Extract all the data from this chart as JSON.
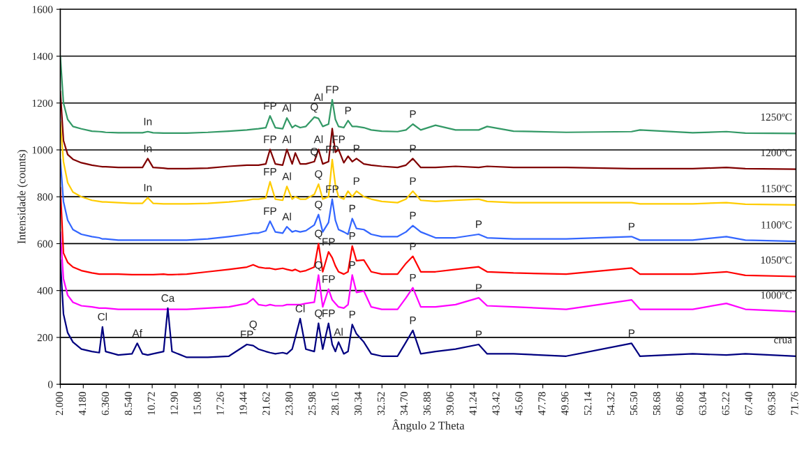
{
  "chart_data": {
    "type": "line",
    "xlabel": "Ângulo 2 Theta",
    "ylabel": "Intensidade (counts)",
    "x": [
      2,
      2.3,
      2.7,
      3.2,
      4,
      5,
      5.7,
      6.0,
      6.3,
      7.5,
      8.8,
      9.3,
      9.8,
      10.3,
      10.8,
      11.8,
      12.2,
      12.6,
      14,
      16,
      18,
      19.7,
      20.3,
      20.8,
      21.5,
      21.9,
      22.4,
      23.1,
      23.5,
      24.0,
      24.3,
      24.76,
      25.3,
      26.1,
      26.5,
      26.9,
      27.45,
      27.8,
      28.1,
      28.4,
      28.9,
      29.3,
      29.7,
      30.1,
      30.8,
      31.5,
      32.5,
      34.0,
      34.8,
      35.45,
      36.2,
      37.6,
      39.5,
      41.7,
      42.5,
      45,
      50,
      56.2,
      57,
      62,
      65.2,
      67,
      71.8
    ],
    "series": [
      {
        "name": "1250ºC",
        "color": "#339966",
        "values": [
          1400,
          1200,
          1130,
          1100,
          1090,
          1080,
          1078,
          1077,
          1075,
          1073,
          1073,
          1073,
          1073,
          1078,
          1073,
          1072,
          1072,
          1072,
          1072,
          1075,
          1080,
          1085,
          1088,
          1090,
          1095,
          1145,
          1095,
          1090,
          1136,
          1095,
          1105,
          1095,
          1100,
          1140,
          1134,
          1100,
          1110,
          1214,
          1130,
          1100,
          1095,
          1125,
          1100,
          1100,
          1095,
          1085,
          1080,
          1078,
          1085,
          1110,
          1085,
          1105,
          1085,
          1085,
          1100,
          1080,
          1075,
          1078,
          1085,
          1073,
          1078,
          1072,
          1070
        ]
      },
      {
        "name": "1200ºC",
        "color": "#800000",
        "values": [
          1250,
          1040,
          980,
          960,
          945,
          935,
          930,
          928,
          928,
          925,
          925,
          925,
          925,
          963,
          925,
          922,
          920,
          920,
          920,
          922,
          930,
          935,
          935,
          935,
          940,
          1002,
          940,
          935,
          1002,
          940,
          987,
          940,
          940,
          950,
          1002,
          940,
          950,
          1091,
          990,
          1002,
          945,
          973,
          950,
          963,
          940,
          935,
          930,
          925,
          935,
          963,
          925,
          925,
          930,
          925,
          930,
          925,
          925,
          920,
          920,
          920,
          925,
          920,
          918
        ]
      },
      {
        "name": "1150ºC",
        "color": "#ffcc00",
        "values": [
          1120,
          950,
          860,
          820,
          800,
          785,
          780,
          778,
          778,
          775,
          772,
          772,
          772,
          796,
          772,
          770,
          770,
          770,
          770,
          772,
          778,
          785,
          790,
          790,
          795,
          864,
          790,
          785,
          844,
          790,
          800,
          790,
          790,
          810,
          854,
          790,
          800,
          959,
          850,
          800,
          790,
          824,
          800,
          824,
          800,
          790,
          780,
          775,
          790,
          824,
          785,
          780,
          785,
          790,
          780,
          775,
          775,
          775,
          770,
          770,
          775,
          768,
          765
        ]
      },
      {
        "name": "1100ºC",
        "color": "#3366ff",
        "values": [
          960,
          780,
          700,
          660,
          640,
          630,
          625,
          620,
          620,
          615,
          615,
          615,
          615,
          615,
          615,
          615,
          615,
          615,
          615,
          620,
          630,
          640,
          645,
          645,
          655,
          696,
          650,
          645,
          672,
          650,
          655,
          650,
          655,
          680,
          724,
          650,
          690,
          790,
          700,
          660,
          650,
          640,
          707,
          665,
          660,
          640,
          630,
          630,
          650,
          677,
          650,
          625,
          625,
          640,
          625,
          620,
          620,
          630,
          615,
          615,
          630,
          615,
          610
        ]
      },
      {
        "name": "1050ºC",
        "color": "#ff0000",
        "values": [
          840,
          560,
          520,
          500,
          485,
          475,
          470,
          470,
          470,
          470,
          468,
          468,
          468,
          468,
          468,
          470,
          468,
          468,
          470,
          480,
          490,
          500,
          510,
          500,
          495,
          495,
          490,
          495,
          490,
          485,
          490,
          480,
          485,
          500,
          600,
          480,
          565,
          540,
          505,
          480,
          470,
          480,
          590,
          527,
          530,
          480,
          470,
          470,
          516,
          546,
          480,
          480,
          490,
          501,
          480,
          475,
          470,
          496,
          470,
          470,
          480,
          465,
          460
        ]
      },
      {
        "name": "1000ºC",
        "color": "#ff00ff",
        "values": [
          650,
          450,
          380,
          350,
          335,
          330,
          325,
          325,
          325,
          320,
          320,
          320,
          320,
          320,
          320,
          320,
          320,
          320,
          320,
          325,
          330,
          345,
          365,
          340,
          335,
          340,
          335,
          335,
          340,
          340,
          340,
          340,
          345,
          350,
          466,
          330,
          406,
          360,
          345,
          330,
          325,
          340,
          466,
          392,
          398,
          330,
          320,
          320,
          369,
          412,
          330,
          330,
          340,
          369,
          335,
          330,
          320,
          360,
          320,
          320,
          345,
          320,
          310
        ]
      },
      {
        "name": "crua",
        "color": "#000080",
        "values": [
          530,
          300,
          220,
          180,
          150,
          140,
          135,
          245,
          140,
          125,
          130,
          175,
          130,
          125,
          130,
          140,
          325,
          140,
          115,
          115,
          120,
          170,
          165,
          150,
          140,
          135,
          130,
          135,
          130,
          150,
          200,
          280,
          150,
          140,
          260,
          150,
          260,
          170,
          140,
          180,
          130,
          140,
          255,
          215,
          180,
          130,
          120,
          120,
          180,
          230,
          130,
          140,
          150,
          170,
          130,
          130,
          120,
          175,
          120,
          130,
          125,
          130,
          120
        ]
      }
    ],
    "xlim": [
      2,
      71.8
    ],
    "xticks": [
      {
        "value": 2,
        "label": "2.000"
      },
      {
        "value": 4.18,
        "label": "4.180"
      },
      {
        "value": 6.36,
        "label": "6.360"
      },
      {
        "value": 8.54,
        "label": "8.540"
      },
      10.72,
      {
        "value": 12.9,
        "label": "12.90"
      },
      15.08,
      17.26,
      19.44,
      21.62,
      {
        "value": 23.8,
        "label": "23.80"
      },
      25.98,
      28.16,
      30.34,
      32.52,
      {
        "value": 34.7,
        "label": "34.70"
      },
      36.88,
      39.06,
      41.24,
      43.42,
      {
        "value": 45.6,
        "label": "45.60"
      },
      47.78,
      49.96,
      52.14,
      54.32,
      {
        "value": 56.5,
        "label": "56.50"
      },
      58.68,
      60.86,
      63.04,
      65.22,
      {
        "value": 67.4,
        "label": "67.40"
      },
      69.58,
      71.76
    ],
    "ylim": [
      0,
      1600
    ],
    "yticks": [
      0,
      200,
      400,
      600,
      800,
      1000,
      1200,
      1400,
      1600
    ],
    "grid": "y",
    "legend": false,
    "marker": "none",
    "line_style": "solid",
    "annotations": [
      {
        "text": "In",
        "x": 10.3,
        "y": 1078
      },
      {
        "text": "FP",
        "x": 21.9,
        "y": 1145
      },
      {
        "text": "Al",
        "x": 23.5,
        "y": 1136
      },
      {
        "text": "Q",
        "x": 26.1,
        "y": 1140
      },
      {
        "text": "FP",
        "x": 27.8,
        "y": 1214
      },
      {
        "text": "Al",
        "x": 26.5,
        "y": 1134
      },
      {
        "text": "P",
        "x": 29.3,
        "y": 1125
      },
      {
        "text": "P",
        "x": 35.45,
        "y": 1110
      },
      {
        "text": "In",
        "x": 10.3,
        "y": 963
      },
      {
        "text": "FP",
        "x": 21.9,
        "y": 1002
      },
      {
        "text": "Al",
        "x": 23.5,
        "y": 1002
      },
      {
        "text": "Q",
        "x": 26.1,
        "y": 950
      },
      {
        "text": "Al",
        "x": 26.5,
        "y": 1002
      },
      {
        "text": "FP",
        "x": 28.4,
        "y": 1002
      },
      {
        "text": "P",
        "x": 30.1,
        "y": 963
      },
      {
        "text": "P",
        "x": 35.45,
        "y": 963
      },
      {
        "text": "In",
        "x": 10.3,
        "y": 796
      },
      {
        "text": "FP",
        "x": 21.9,
        "y": 864
      },
      {
        "text": "Al",
        "x": 23.5,
        "y": 844
      },
      {
        "text": "Q",
        "x": 26.5,
        "y": 854
      },
      {
        "text": "FP",
        "x": 27.8,
        "y": 959
      },
      {
        "text": "P",
        "x": 30.1,
        "y": 824
      },
      {
        "text": "P",
        "x": 35.45,
        "y": 824
      },
      {
        "text": "FP",
        "x": 21.9,
        "y": 696
      },
      {
        "text": "Al",
        "x": 23.5,
        "y": 672
      },
      {
        "text": "Q",
        "x": 26.5,
        "y": 724
      },
      {
        "text": "FP",
        "x": 27.8,
        "y": 790
      },
      {
        "text": "P",
        "x": 29.7,
        "y": 707
      },
      {
        "text": "P",
        "x": 35.45,
        "y": 677
      },
      {
        "text": "P",
        "x": 41.7,
        "y": 640
      },
      {
        "text": "P",
        "x": 56.2,
        "y": 630
      },
      {
        "text": "Q",
        "x": 26.5,
        "y": 600
      },
      {
        "text": "FP",
        "x": 27.45,
        "y": 565
      },
      {
        "text": "P",
        "x": 29.7,
        "y": 590
      },
      {
        "text": "P",
        "x": 35.45,
        "y": 546
      },
      {
        "text": "Q",
        "x": 26.5,
        "y": 466
      },
      {
        "text": "FP",
        "x": 27.45,
        "y": 406
      },
      {
        "text": "P",
        "x": 29.7,
        "y": 466
      },
      {
        "text": "P",
        "x": 35.45,
        "y": 412
      },
      {
        "text": "P",
        "x": 41.7,
        "y": 369
      },
      {
        "text": "Cl",
        "x": 6.0,
        "y": 245
      },
      {
        "text": "Af",
        "x": 9.3,
        "y": 175
      },
      {
        "text": "Ca",
        "x": 12.2,
        "y": 325
      },
      {
        "text": "FP",
        "x": 19.7,
        "y": 170
      },
      {
        "text": "Q",
        "x": 20.3,
        "y": 165
      },
      {
        "text": "Cl",
        "x": 24.76,
        "y": 280
      },
      {
        "text": "Q",
        "x": 26.5,
        "y": 260
      },
      {
        "text": "FP",
        "x": 27.45,
        "y": 260
      },
      {
        "text": "Al",
        "x": 28.4,
        "y": 180
      },
      {
        "text": "P",
        "x": 29.7,
        "y": 255
      },
      {
        "text": "P",
        "x": 35.45,
        "y": 230
      },
      {
        "text": "P",
        "x": 41.7,
        "y": 170
      },
      {
        "text": "P",
        "x": 56.2,
        "y": 175
      }
    ]
  }
}
